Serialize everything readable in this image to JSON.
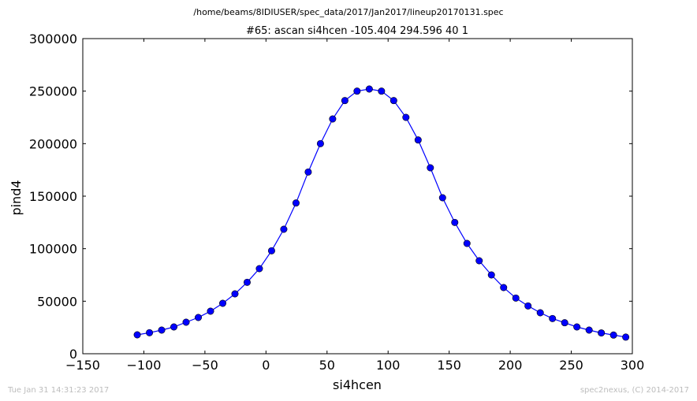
{
  "file_path": "/home/beams/8IDIUSER/spec_data/2017/Jan2017/lineup20170131.spec",
  "footer": {
    "timestamp": "Tue Jan 31 14:31:23 2017",
    "credit": "spec2nexus, (C) 2014-2017"
  },
  "chart_data": {
    "type": "line",
    "title": "#65: ascan  si4hcen -105.404 294.596  40 1",
    "xlabel": "si4hcen",
    "ylabel": "pind4",
    "xlim": [
      -150,
      300
    ],
    "ylim": [
      0,
      300000
    ],
    "xticks": [
      -150,
      -100,
      -50,
      0,
      50,
      100,
      150,
      200,
      250,
      300
    ],
    "yticks": [
      0,
      50000,
      100000,
      150000,
      200000,
      250000,
      300000
    ],
    "xtick_labels": [
      "−150",
      "−100",
      "−50",
      "0",
      "50",
      "100",
      "150",
      "200",
      "250",
      "300"
    ],
    "ytick_labels": [
      "0",
      "50000",
      "100000",
      "150000",
      "200000",
      "250000",
      "300000"
    ],
    "grid": false,
    "series_color": "#0000ff",
    "series": [
      {
        "marker": "circle",
        "x": [
          -105.404,
          -95.404,
          -85.404,
          -75.404,
          -65.404,
          -55.404,
          -45.404,
          -35.404,
          -25.404,
          -15.404,
          -5.404,
          4.596,
          14.596,
          24.596,
          34.596,
          44.596,
          54.596,
          64.596,
          74.596,
          84.596,
          94.596,
          104.596,
          114.596,
          124.596,
          134.596,
          144.596,
          154.596,
          164.596,
          174.596,
          184.596,
          194.596,
          204.596,
          214.596,
          224.596,
          234.596,
          244.596,
          254.596,
          264.596,
          274.596,
          284.596,
          294.596
        ],
        "y": [
          18000,
          20000,
          22500,
          25500,
          30000,
          34500,
          40500,
          48000,
          57000,
          68000,
          81000,
          98000,
          118500,
          143500,
          173000,
          200000,
          223500,
          241000,
          250000,
          252000,
          250000,
          241000,
          225000,
          203500,
          177000,
          148500,
          125000,
          105000,
          88500,
          75000,
          63000,
          53000,
          45500,
          39000,
          33500,
          29500,
          25500,
          22500,
          19800,
          17800,
          15800
        ]
      }
    ]
  }
}
